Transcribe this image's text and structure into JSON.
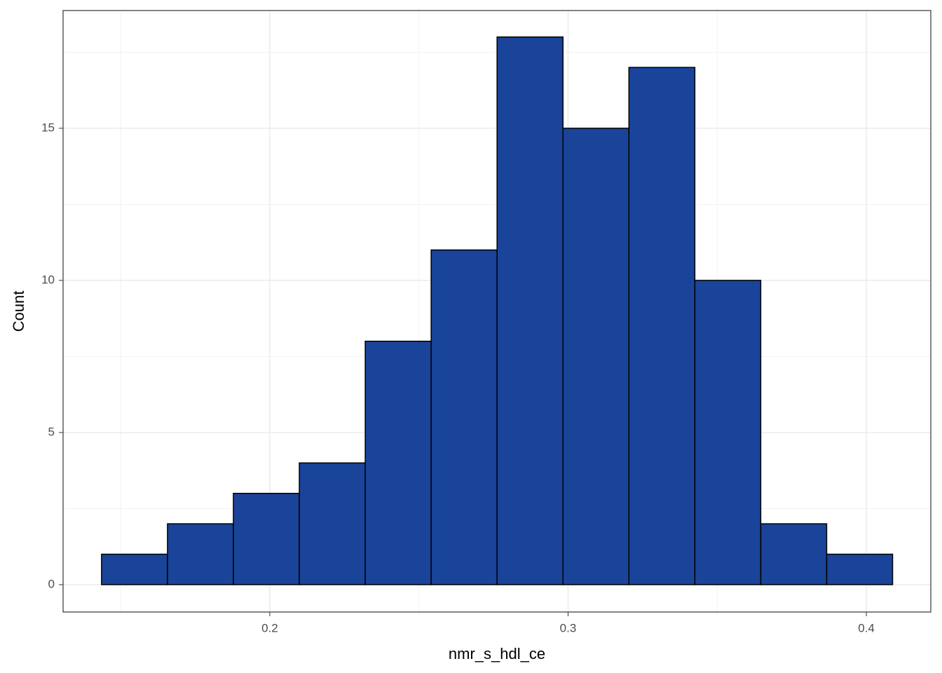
{
  "chart_data": {
    "type": "histogram",
    "x_label": "nmr_s_hdl_ce",
    "y_label": "Count",
    "bins": [
      0.1436,
      0.1657,
      0.1878,
      0.2099,
      0.232,
      0.2541,
      0.2762,
      0.2983,
      0.3204,
      0.3425,
      0.3646,
      0.3867,
      0.4088
    ],
    "values": [
      1,
      2,
      3,
      4,
      8,
      11,
      18,
      15,
      17,
      10,
      2,
      1
    ],
    "color": "#1a4499",
    "edge_color": "#000000",
    "xlim": [
      0.1307,
      0.4216
    ],
    "xticks": [
      0.2,
      0.3,
      0.4
    ],
    "ylim": [
      -0.9,
      18.87
    ],
    "yticks": [
      0,
      5,
      10,
      15
    ],
    "grid": true,
    "x_minor_gridlines": [
      0.15,
      0.25,
      0.35
    ],
    "y_minor_gridlines": [
      2.5,
      7.5,
      12.5,
      17.5
    ]
  }
}
